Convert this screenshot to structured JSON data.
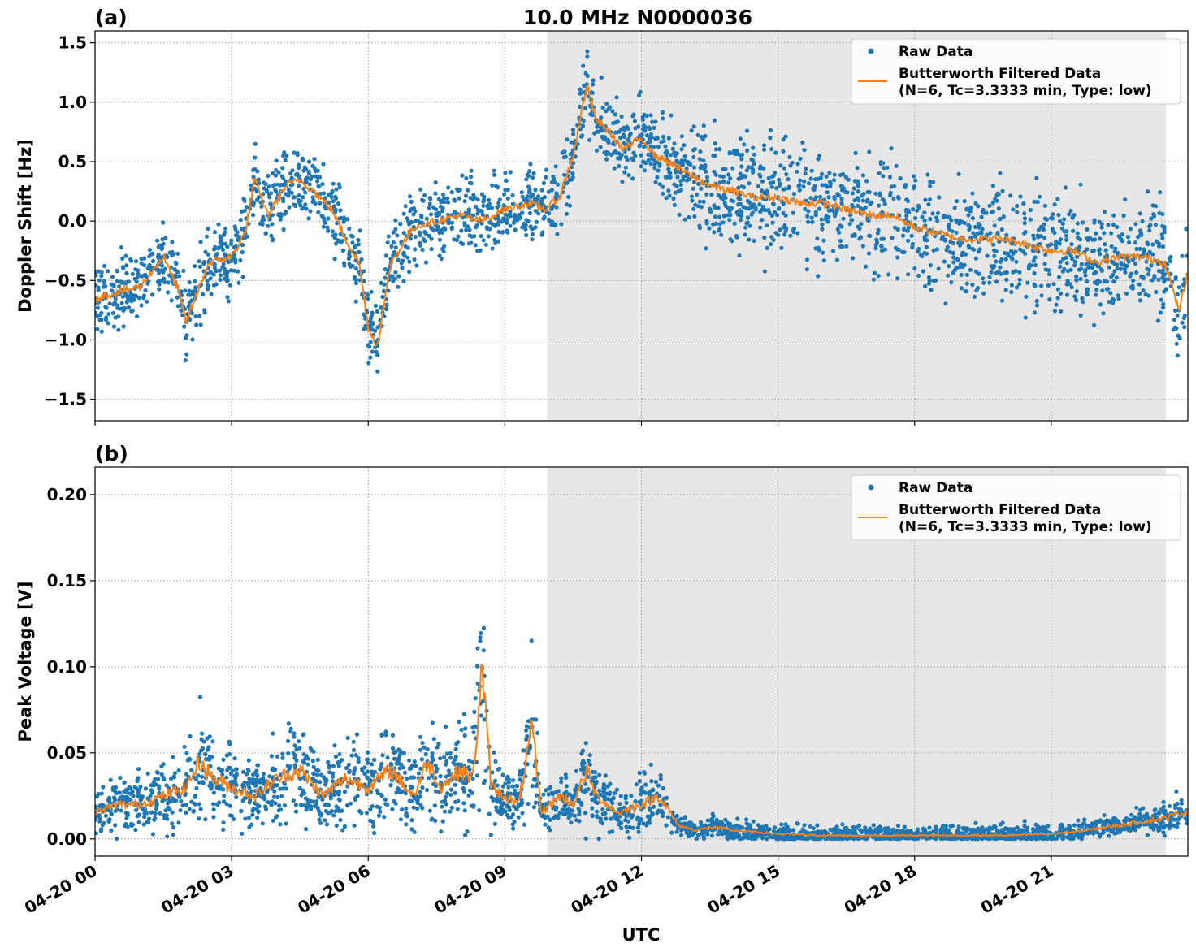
{
  "figure": {
    "title": "10.0 MHz N0000036",
    "xlabel": "UTC"
  },
  "chart_data": [
    {
      "panel_label": "(a)",
      "type": "scatter",
      "ylabel": "Doppler Shift [Hz]",
      "xlim": [
        0,
        24
      ],
      "ylim": [
        -1.68,
        1.6
      ],
      "x_ticks": [
        "04-20 00",
        "04-20 03",
        "04-20 06",
        "04-20 09",
        "04-20 12",
        "04-20 15",
        "04-20 18",
        "04-20 21"
      ],
      "y_ticks": [
        "1.5",
        "1.0",
        "0.5",
        "0.0",
        "−0.5",
        "−1.0",
        "−1.5"
      ],
      "y_tick_values": [
        1.5,
        1.0,
        0.5,
        0.0,
        -0.5,
        -1.0,
        -1.5
      ],
      "shaded_span_hours": [
        9.93,
        23.52
      ],
      "grid": true,
      "legend_position": "top-right",
      "series": [
        {
          "name": "Raw Data",
          "kind": "scatter",
          "color": "#1f77b4",
          "x": [
            0,
            0.5,
            1.0,
            1.5,
            1.8,
            2.0,
            2.5,
            3.0,
            3.3,
            3.5,
            3.8,
            4.2,
            4.5,
            4.8,
            5.2,
            5.5,
            5.8,
            6.0,
            6.2,
            6.5,
            7.0,
            7.5,
            8.0,
            8.5,
            9.0,
            9.5,
            9.9,
            10.2,
            10.5,
            10.8,
            11.0,
            11.3,
            11.6,
            12.0,
            12.3,
            12.6,
            13.0,
            13.5,
            14.0,
            14.5,
            15.0,
            15.5,
            16.0,
            16.5,
            17.0,
            17.5,
            18.0,
            18.5,
            19.0,
            19.5,
            20.0,
            20.5,
            21.0,
            21.5,
            22.0,
            22.5,
            23.0,
            23.5,
            23.8,
            24.0
          ],
          "y": [
            -0.65,
            -0.6,
            -0.55,
            -0.3,
            -0.55,
            -0.85,
            -0.35,
            -0.3,
            -0.1,
            0.35,
            0.05,
            0.3,
            0.35,
            0.25,
            0.1,
            -0.15,
            -0.35,
            -0.9,
            -1.05,
            -0.35,
            -0.05,
            0.0,
            0.05,
            0.0,
            0.1,
            0.15,
            0.1,
            0.2,
            0.55,
            1.15,
            0.85,
            0.75,
            0.6,
            0.7,
            0.55,
            0.5,
            0.4,
            0.3,
            0.25,
            0.2,
            0.2,
            0.15,
            0.15,
            0.1,
            0.05,
            0.05,
            -0.05,
            -0.1,
            -0.15,
            -0.15,
            -0.15,
            -0.2,
            -0.25,
            -0.25,
            -0.35,
            -0.3,
            -0.3,
            -0.35,
            -0.75,
            -0.45
          ]
        },
        {
          "name": "Butterworth Filtered Data\n(N=6, Tc=3.3333 min, Type: low)",
          "kind": "line",
          "color": "#ff7f0e",
          "x": [
            0,
            0.5,
            1.0,
            1.5,
            1.8,
            2.0,
            2.5,
            3.0,
            3.3,
            3.5,
            3.8,
            4.2,
            4.5,
            4.8,
            5.2,
            5.5,
            5.8,
            6.0,
            6.2,
            6.5,
            7.0,
            7.5,
            8.0,
            8.5,
            9.0,
            9.5,
            9.9,
            10.2,
            10.5,
            10.8,
            11.0,
            11.3,
            11.6,
            12.0,
            12.3,
            12.6,
            13.0,
            13.5,
            14.0,
            14.5,
            15.0,
            15.5,
            16.0,
            16.5,
            17.0,
            17.5,
            18.0,
            18.5,
            19.0,
            19.5,
            20.0,
            20.5,
            21.0,
            21.5,
            22.0,
            22.5,
            23.0,
            23.5,
            23.8,
            24.0
          ],
          "y": [
            -0.65,
            -0.6,
            -0.55,
            -0.3,
            -0.55,
            -0.85,
            -0.35,
            -0.3,
            -0.1,
            0.35,
            0.05,
            0.3,
            0.35,
            0.25,
            0.1,
            -0.15,
            -0.35,
            -0.9,
            -1.05,
            -0.35,
            -0.05,
            0.0,
            0.05,
            0.0,
            0.1,
            0.15,
            0.1,
            0.2,
            0.55,
            1.15,
            0.85,
            0.75,
            0.6,
            0.7,
            0.55,
            0.5,
            0.4,
            0.3,
            0.25,
            0.2,
            0.2,
            0.15,
            0.15,
            0.1,
            0.05,
            0.05,
            -0.05,
            -0.1,
            -0.15,
            -0.15,
            -0.15,
            -0.2,
            -0.25,
            -0.25,
            -0.35,
            -0.3,
            -0.3,
            -0.35,
            -0.75,
            -0.45
          ]
        }
      ]
    },
    {
      "panel_label": "(b)",
      "type": "scatter",
      "ylabel": "Peak Voltage [V]",
      "xlim": [
        0,
        24
      ],
      "ylim": [
        -0.01,
        0.216
      ],
      "x_ticks": [
        "04-20 00",
        "04-20 03",
        "04-20 06",
        "04-20 09",
        "04-20 12",
        "04-20 15",
        "04-20 18",
        "04-20 21"
      ],
      "y_ticks": [
        "0.20",
        "0.15",
        "0.10",
        "0.05",
        "0.00"
      ],
      "y_tick_values": [
        0.2,
        0.15,
        0.1,
        0.05,
        0.0
      ],
      "shaded_span_hours": [
        9.93,
        23.52
      ],
      "grid": true,
      "legend_position": "top-right",
      "series": [
        {
          "name": "Raw Data",
          "kind": "scatter",
          "color": "#1f77b4",
          "x": [
            0,
            0.5,
            1.0,
            1.5,
            2.0,
            2.3,
            2.6,
            3.0,
            3.5,
            4.0,
            4.5,
            5.0,
            5.5,
            6.0,
            6.5,
            7.0,
            7.3,
            7.6,
            8.0,
            8.3,
            8.5,
            8.7,
            9.0,
            9.3,
            9.6,
            9.8,
            10.2,
            10.5,
            10.8,
            11.0,
            11.5,
            12.0,
            12.4,
            12.8,
            13.2,
            13.6,
            14.0,
            15.0,
            16.0,
            17.0,
            18.0,
            19.0,
            20.0,
            21.0,
            21.5,
            22.0,
            22.5,
            23.0,
            23.5,
            23.8,
            24.0
          ],
          "y": [
            0.015,
            0.02,
            0.02,
            0.025,
            0.03,
            0.045,
            0.035,
            0.03,
            0.025,
            0.035,
            0.04,
            0.025,
            0.035,
            0.03,
            0.04,
            0.025,
            0.045,
            0.03,
            0.04,
            0.035,
            0.1,
            0.03,
            0.025,
            0.02,
            0.065,
            0.015,
            0.025,
            0.02,
            0.04,
            0.025,
            0.015,
            0.02,
            0.025,
            0.008,
            0.005,
            0.007,
            0.005,
            0.003,
            0.002,
            0.002,
            0.002,
            0.002,
            0.002,
            0.003,
            0.004,
            0.006,
            0.008,
            0.01,
            0.012,
            0.015,
            0.015
          ]
        },
        {
          "name": "Butterworth Filtered Data\n(N=6, Tc=3.3333 min, Type: low)",
          "kind": "line",
          "color": "#ff7f0e",
          "x": [
            0,
            0.5,
            1.0,
            1.5,
            2.0,
            2.3,
            2.6,
            3.0,
            3.5,
            4.0,
            4.5,
            5.0,
            5.5,
            6.0,
            6.5,
            7.0,
            7.3,
            7.6,
            8.0,
            8.3,
            8.5,
            8.7,
            9.0,
            9.3,
            9.6,
            9.8,
            10.2,
            10.5,
            10.8,
            11.0,
            11.5,
            12.0,
            12.4,
            12.8,
            13.2,
            13.6,
            14.0,
            15.0,
            16.0,
            17.0,
            18.0,
            19.0,
            20.0,
            21.0,
            21.5,
            22.0,
            22.5,
            23.0,
            23.5,
            23.8,
            24.0
          ],
          "y": [
            0.015,
            0.02,
            0.02,
            0.025,
            0.03,
            0.045,
            0.035,
            0.03,
            0.025,
            0.035,
            0.04,
            0.025,
            0.035,
            0.03,
            0.04,
            0.025,
            0.045,
            0.03,
            0.04,
            0.035,
            0.1,
            0.03,
            0.025,
            0.02,
            0.065,
            0.015,
            0.025,
            0.02,
            0.04,
            0.025,
            0.015,
            0.02,
            0.025,
            0.008,
            0.005,
            0.007,
            0.005,
            0.003,
            0.002,
            0.002,
            0.002,
            0.002,
            0.002,
            0.003,
            0.004,
            0.006,
            0.008,
            0.01,
            0.012,
            0.015,
            0.015
          ]
        }
      ]
    }
  ]
}
